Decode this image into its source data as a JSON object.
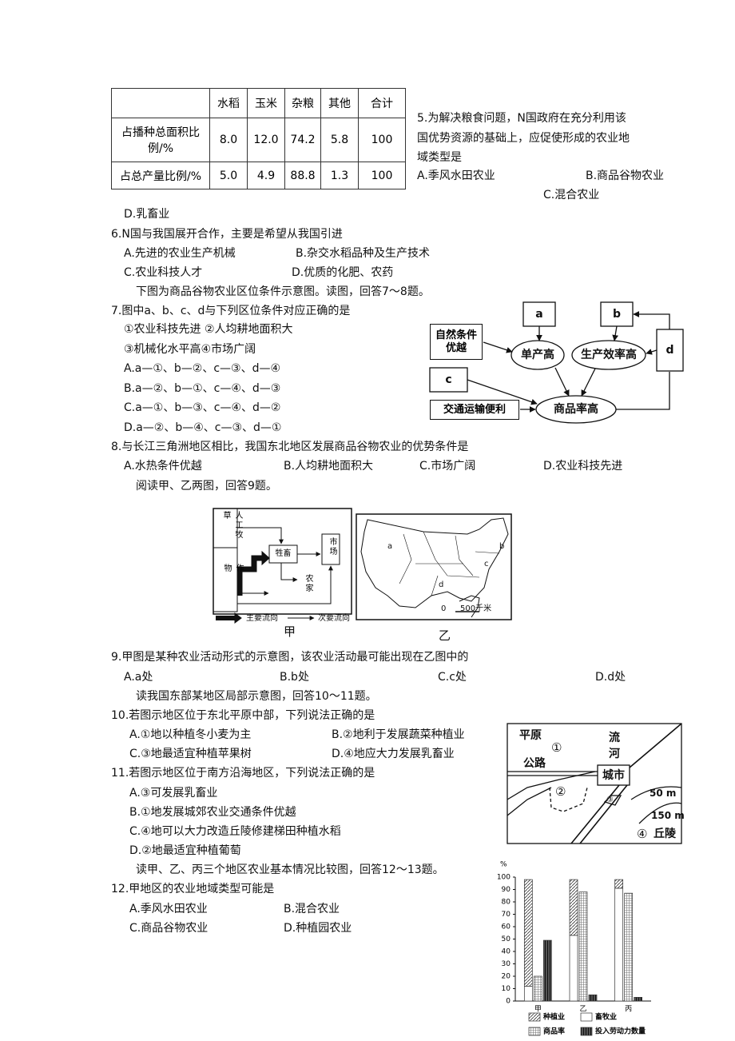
{
  "table": {
    "header": [
      "",
      "水稻",
      "玉米",
      "杂粮",
      "其他",
      "合计"
    ],
    "rows": [
      [
        "占播种总面积比例/%",
        "8.0",
        "12.0",
        "74.2",
        "5.8",
        "100"
      ],
      [
        "占总产量比例/%",
        "5.0",
        "4.9",
        "88.8",
        "1.3",
        "100"
      ]
    ]
  },
  "questions": [
    {
      "stem": "5.为解决粮食问题，N国政府在充分利用该国优势资源的基础上，应促使形成的农业地域类型是",
      "options": [
        "A.季风水田农业",
        "B.商品谷物农业",
        "C.混合农业",
        "D.乳畜业"
      ]
    },
    {
      "stem": "6.N国与我国展开合作，主要是希望从我国引进",
      "options": [
        "A.先进的农业生产机械",
        "B.杂交水稻品种及生产技术",
        "C.农业科技人才",
        "D.优质的化肥、农药"
      ]
    },
    {
      "stem": "7.图中a、b、c、d与下列区位条件对应正确的是",
      "conditions": [
        "①农业科技先进 ②人均耕地面积大",
        "③机械化水平高④市场广阔"
      ],
      "options": [
        "A.a—①、b—②、c—③、d—④",
        "B.a—②、b—①、c—④、d—③",
        "C.a—①、b—③、c—④、d—②",
        "D.a—②、b—④、c—③、d—①"
      ]
    },
    {
      "stem": "8.与长江三角洲地区相比，我国东北地区发展商品谷物农业的优势条件是",
      "options": [
        "A.水热条件优越",
        "B.人均耕地面积大",
        "C.市场广阔",
        "D.农业科技先进"
      ]
    },
    {
      "stem": "9.甲图是某种农业活动形式的示意图，该农业活动最可能出现在乙图中的",
      "options": [
        "A.a处",
        "B.b处",
        "C.c处",
        "D.d处"
      ]
    },
    {
      "stem": "10.若图示地区位于东北平原中部，下列说法正确的是",
      "options": [
        "A.①地以种植冬小麦为主",
        "B.②地利于发展蔬菜种植业",
        "C.③地最适宜种植苹果树",
        "D.④地应大力发展乳畜业"
      ]
    },
    {
      "stem": "11.若图示地区位于南方沿海地区，下列说法正确的是",
      "options": [
        "A.③可发展乳畜业",
        "B.①地发展城郊农业交通条件优越",
        "C.④地可以大力改造丘陵修建梯田种植水稻",
        "D.②地最适宜种植葡萄"
      ]
    },
    {
      "stem": "12.甲地区的农业地域类型可能是",
      "options": [
        "A.季风水田农业",
        "B.混合农业",
        "C.商品谷物农业",
        "D.种植园农业"
      ]
    }
  ],
  "intros": [
    "下图为商品谷物农业区位条件示意图。读图，回答7～8题。",
    "阅读甲、乙两图，回答9题。",
    "读我国东部某地区局部示意图，回答10～11题。",
    "读甲、乙、丙三个地区农业基本情况比较图，回答12～13题。"
  ],
  "flowchart": {
    "labels": [
      "a",
      "b",
      "c",
      "d",
      "自然条件优越",
      "单产高",
      "生产效率高",
      "交通运输便利",
      "商品率高"
    ]
  },
  "figure_jia": {
    "labels": [
      "人工牧草",
      "作物",
      "牲畜",
      "市场",
      "农家"
    ],
    "legend": [
      "主要流向",
      "次要流向"
    ],
    "caption": "甲"
  },
  "figure_yi": {
    "labels": [
      "a",
      "b",
      "c",
      "d"
    ],
    "scale": [
      "0",
      "500千米"
    ],
    "caption": "乙"
  },
  "local_map": {
    "labels": [
      "平原",
      "①",
      "流",
      "河",
      "公路",
      "城市",
      "②",
      "③",
      "50 m",
      "150 m",
      "④",
      "丘陵"
    ]
  },
  "bar_chart": {
    "y_unit": "%",
    "categories": [
      "甲",
      "乙",
      "丙"
    ],
    "ylim": [
      0,
      100
    ],
    "yticks": [
      0,
      10,
      20,
      30,
      40,
      50,
      60,
      70,
      80,
      90,
      100
    ],
    "series": [
      {
        "name": "种植业",
        "values": [
          86,
          45,
          7
        ]
      },
      {
        "name": "畜牧业",
        "values": [
          12,
          53,
          91
        ]
      },
      {
        "name": "商品率",
        "values": [
          20,
          88,
          87
        ]
      },
      {
        "name": "投入劳动力数量",
        "values": [
          49,
          5,
          3
        ]
      }
    ]
  }
}
